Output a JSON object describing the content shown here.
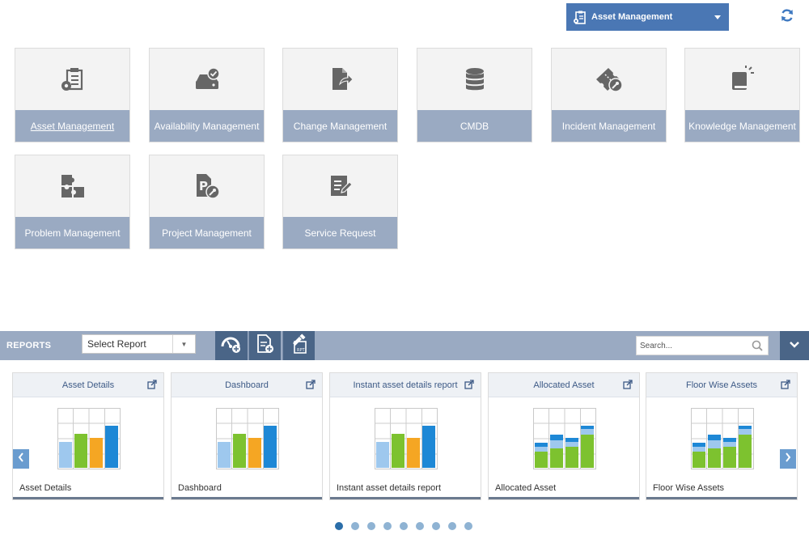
{
  "header": {
    "module_selector": {
      "label": "Asset Management",
      "icon": "clipboard-gear-icon"
    },
    "refresh_icon": "refresh-icon"
  },
  "tiles": [
    {
      "label": "Asset Management",
      "icon": "clipboard-gear-icon",
      "active": true
    },
    {
      "label": "Availability Management",
      "icon": "drive-check-icon"
    },
    {
      "label": "Change Management",
      "icon": "document-arrow-icon"
    },
    {
      "label": "CMDB",
      "icon": "database-icon"
    },
    {
      "label": "Incident Management",
      "icon": "ticket-wrench-icon"
    },
    {
      "label": "Knowledge Management",
      "icon": "book-light-icon"
    },
    {
      "label": "Problem Management",
      "icon": "puzzle-icon"
    },
    {
      "label": "Project Management",
      "icon": "project-wrench-icon"
    },
    {
      "label": "Service Request",
      "icon": "edit-document-icon"
    }
  ],
  "reports": {
    "title": "REPORTS",
    "select": {
      "value": "Select Report"
    },
    "search": {
      "placeholder": "Search..."
    },
    "toolbar_icons": [
      "dashboard-add-icon",
      "report-add-icon",
      "report-builder-icon"
    ],
    "cards": [
      {
        "title": "Asset Details",
        "footer": "Asset Details",
        "thumb": "bar-chart"
      },
      {
        "title": "Dashboard",
        "footer": "Dashboard",
        "thumb": "bar-chart"
      },
      {
        "title": "Instant asset details report",
        "footer": "Instant asset details report",
        "thumb": "bar-chart"
      },
      {
        "title": "Allocated Asset",
        "footer": "Allocated Asset",
        "thumb": "stacked-chart"
      },
      {
        "title": "Floor Wise Assets",
        "footer": "Floor Wise Assets",
        "thumb": "stacked-chart"
      }
    ],
    "pagination": {
      "pages": 9,
      "current": 1
    }
  },
  "colors": {
    "accent": "#4a77b4",
    "tile_label_bg": "#9aaac2",
    "toolbar_button": "#4a6587",
    "chart_green": "#7dc22f",
    "chart_orange": "#f5a623",
    "chart_blue": "#1e88d6",
    "chart_light_blue": "#9ec8ee"
  }
}
